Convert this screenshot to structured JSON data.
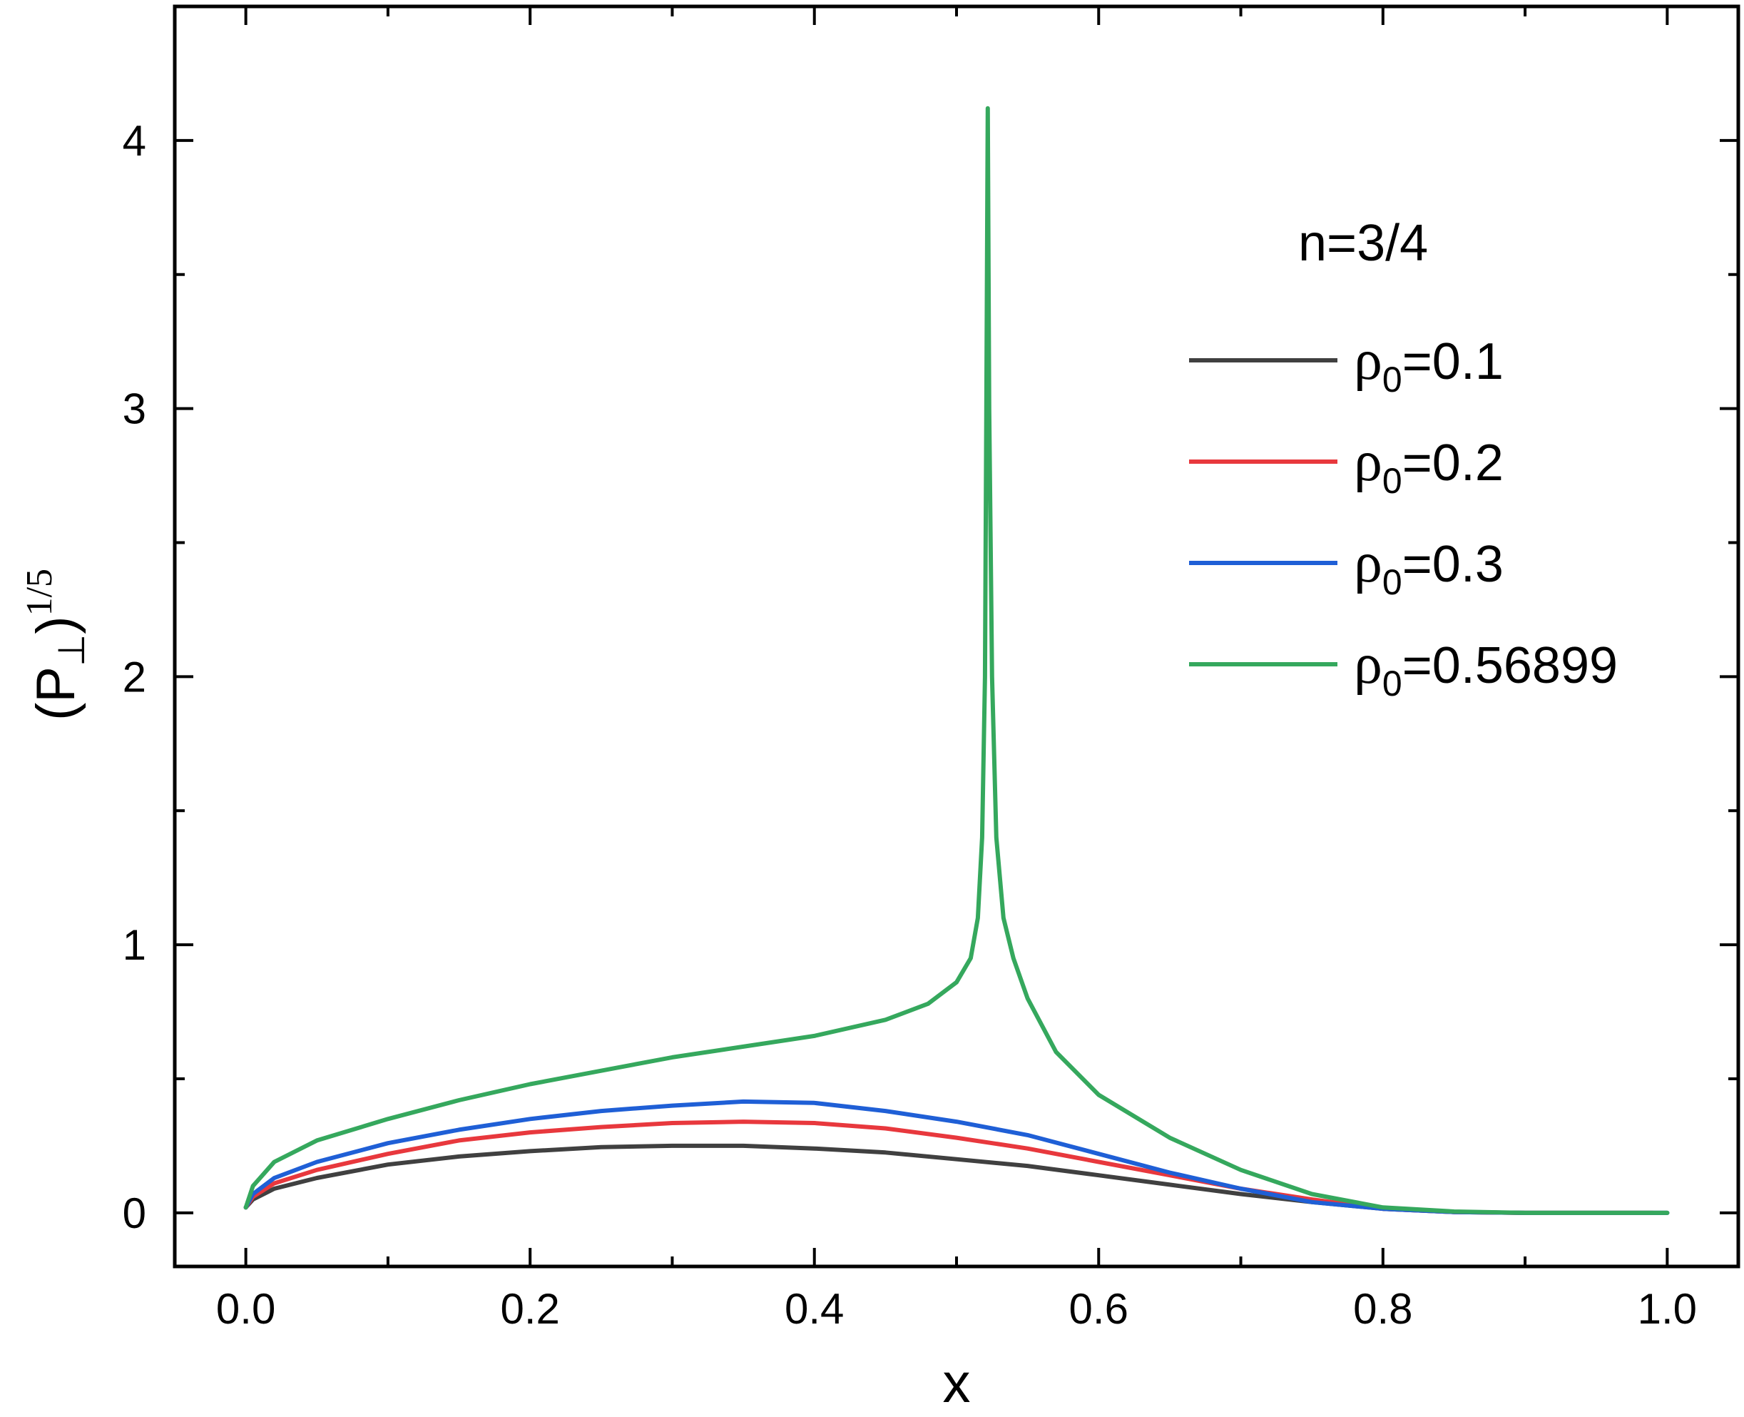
{
  "chart_data": {
    "type": "line",
    "annotation": "n=3/4",
    "xlabel": "x",
    "ylabel": {
      "base": "(P",
      "sub": "⊥",
      "close": ")",
      "sup": "1/5"
    },
    "xlim": [
      -0.05,
      1.05
    ],
    "ylim": [
      -0.2,
      4.5
    ],
    "x_ticks": [
      0.0,
      0.2,
      0.4,
      0.6,
      0.8,
      1.0
    ],
    "x_tick_labels": [
      "0.0",
      "0.2",
      "0.4",
      "0.6",
      "0.8",
      "1.0"
    ],
    "y_ticks": [
      0,
      1,
      2,
      3,
      4
    ],
    "y_tick_labels": [
      "0",
      "1",
      "2",
      "3",
      "4"
    ],
    "grid": false,
    "legend_position": "right",
    "series": [
      {
        "name": "ρ0=0.1",
        "label_prefix": "ρ",
        "label_sub": "0",
        "label_value": "=0.1",
        "color": "#404040",
        "points": [
          [
            0,
            0.02
          ],
          [
            0.005,
            0.05
          ],
          [
            0.02,
            0.09
          ],
          [
            0.05,
            0.13
          ],
          [
            0.1,
            0.18
          ],
          [
            0.15,
            0.21
          ],
          [
            0.2,
            0.23
          ],
          [
            0.25,
            0.245
          ],
          [
            0.3,
            0.25
          ],
          [
            0.35,
            0.25
          ],
          [
            0.4,
            0.24
          ],
          [
            0.45,
            0.225
          ],
          [
            0.5,
            0.2
          ],
          [
            0.55,
            0.175
          ],
          [
            0.6,
            0.14
          ],
          [
            0.65,
            0.105
          ],
          [
            0.7,
            0.07
          ],
          [
            0.75,
            0.04
          ],
          [
            0.8,
            0.015
          ],
          [
            0.85,
            0.003
          ],
          [
            0.9,
            0
          ],
          [
            0.95,
            0
          ],
          [
            1.0,
            0
          ]
        ]
      },
      {
        "name": "ρ0=0.2",
        "label_prefix": "ρ",
        "label_sub": "0",
        "label_value": "=0.2",
        "color": "#e8383d",
        "points": [
          [
            0,
            0.02
          ],
          [
            0.005,
            0.06
          ],
          [
            0.02,
            0.11
          ],
          [
            0.05,
            0.16
          ],
          [
            0.1,
            0.22
          ],
          [
            0.15,
            0.27
          ],
          [
            0.2,
            0.3
          ],
          [
            0.25,
            0.32
          ],
          [
            0.3,
            0.335
          ],
          [
            0.35,
            0.34
          ],
          [
            0.4,
            0.335
          ],
          [
            0.45,
            0.315
          ],
          [
            0.5,
            0.28
          ],
          [
            0.55,
            0.24
          ],
          [
            0.6,
            0.19
          ],
          [
            0.65,
            0.14
          ],
          [
            0.7,
            0.09
          ],
          [
            0.75,
            0.05
          ],
          [
            0.8,
            0.015
          ],
          [
            0.85,
            0.003
          ],
          [
            0.9,
            0
          ],
          [
            0.95,
            0
          ],
          [
            0.99,
            0
          ]
        ]
      },
      {
        "name": "ρ0=0.3",
        "label_prefix": "ρ",
        "label_sub": "0",
        "label_value": "=0.3",
        "color": "#1f5fd6",
        "points": [
          [
            0,
            0.02
          ],
          [
            0.005,
            0.07
          ],
          [
            0.02,
            0.13
          ],
          [
            0.05,
            0.19
          ],
          [
            0.1,
            0.26
          ],
          [
            0.15,
            0.31
          ],
          [
            0.2,
            0.35
          ],
          [
            0.25,
            0.38
          ],
          [
            0.3,
            0.4
          ],
          [
            0.35,
            0.415
          ],
          [
            0.4,
            0.41
          ],
          [
            0.45,
            0.38
          ],
          [
            0.5,
            0.34
          ],
          [
            0.55,
            0.29
          ],
          [
            0.6,
            0.22
          ],
          [
            0.65,
            0.15
          ],
          [
            0.7,
            0.09
          ],
          [
            0.75,
            0.04
          ],
          [
            0.8,
            0.015
          ],
          [
            0.85,
            0.003
          ],
          [
            0.9,
            0
          ],
          [
            0.95,
            0
          ],
          [
            1.0,
            0
          ]
        ]
      },
      {
        "name": "ρ0=0.56899",
        "label_prefix": "ρ",
        "label_sub": "0",
        "label_value": "=0.56899",
        "color": "#35a85d",
        "points": [
          [
            0,
            0.02
          ],
          [
            0.005,
            0.1
          ],
          [
            0.02,
            0.19
          ],
          [
            0.05,
            0.27
          ],
          [
            0.1,
            0.35
          ],
          [
            0.15,
            0.42
          ],
          [
            0.2,
            0.48
          ],
          [
            0.25,
            0.53
          ],
          [
            0.3,
            0.58
          ],
          [
            0.35,
            0.62
          ],
          [
            0.4,
            0.66
          ],
          [
            0.45,
            0.72
          ],
          [
            0.48,
            0.78
          ],
          [
            0.5,
            0.86
          ],
          [
            0.51,
            0.95
          ],
          [
            0.515,
            1.1
          ],
          [
            0.518,
            1.4
          ],
          [
            0.52,
            2.0
          ],
          [
            0.521,
            3.0
          ],
          [
            0.522,
            4.12
          ],
          [
            0.523,
            3.0
          ],
          [
            0.525,
            2.0
          ],
          [
            0.528,
            1.4
          ],
          [
            0.533,
            1.1
          ],
          [
            0.54,
            0.95
          ],
          [
            0.55,
            0.8
          ],
          [
            0.57,
            0.6
          ],
          [
            0.6,
            0.44
          ],
          [
            0.65,
            0.28
          ],
          [
            0.7,
            0.16
          ],
          [
            0.75,
            0.07
          ],
          [
            0.8,
            0.02
          ],
          [
            0.85,
            0.005
          ],
          [
            0.9,
            0
          ],
          [
            0.95,
            0
          ],
          [
            1.0,
            0
          ]
        ]
      }
    ]
  }
}
